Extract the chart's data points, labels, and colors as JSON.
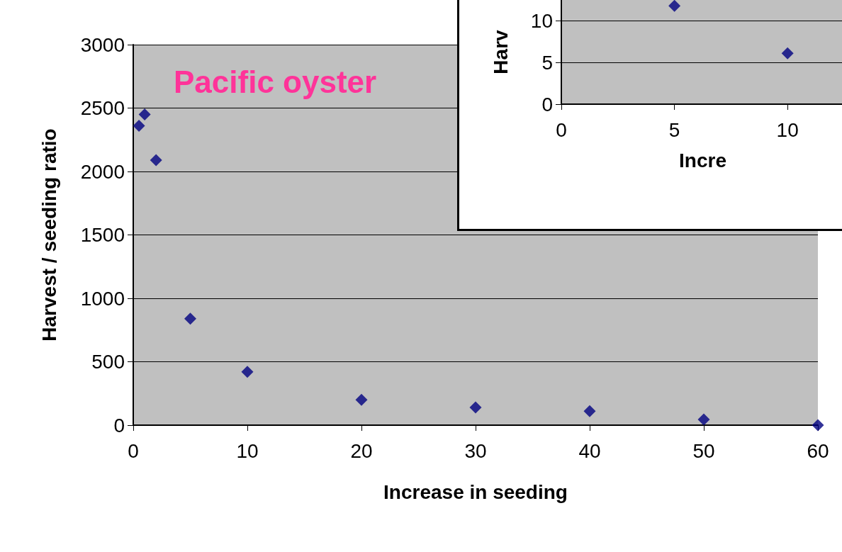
{
  "chart_data": [
    {
      "type": "scatter",
      "title": "Pacific oyster",
      "xlabel": "Increase in seeding",
      "ylabel": "Harvest / seeding ratio",
      "x": [
        0.5,
        1,
        2,
        5,
        10,
        20,
        30,
        40,
        50,
        60
      ],
      "series": [
        {
          "color": "#000080",
          "values": [
            2360,
            2450,
            2090,
            840,
            420,
            200,
            140,
            110,
            45,
            0
          ]
        }
      ],
      "xlim": [
        0,
        60
      ],
      "xticks": [
        0,
        10,
        20,
        30,
        40,
        50,
        60
      ],
      "ylim": [
        0,
        3000
      ],
      "yticks": [
        0,
        500,
        1000,
        1500,
        2000,
        2500,
        3000
      ],
      "grid": "y",
      "marker": "diamond"
    },
    {
      "type": "scatter",
      "xlabel": "Incre",
      "ylabel": "Harv",
      "x": [
        5,
        10
      ],
      "series": [
        {
          "color": "#000080",
          "values": [
            11.8,
            6.1
          ]
        }
      ],
      "xlim": [
        0,
        12.5
      ],
      "xticks": [
        0,
        5,
        10
      ],
      "ylim": [
        0,
        12.5
      ],
      "yticks": [
        0,
        5,
        10
      ],
      "grid": "y",
      "marker": "diamond"
    }
  ]
}
